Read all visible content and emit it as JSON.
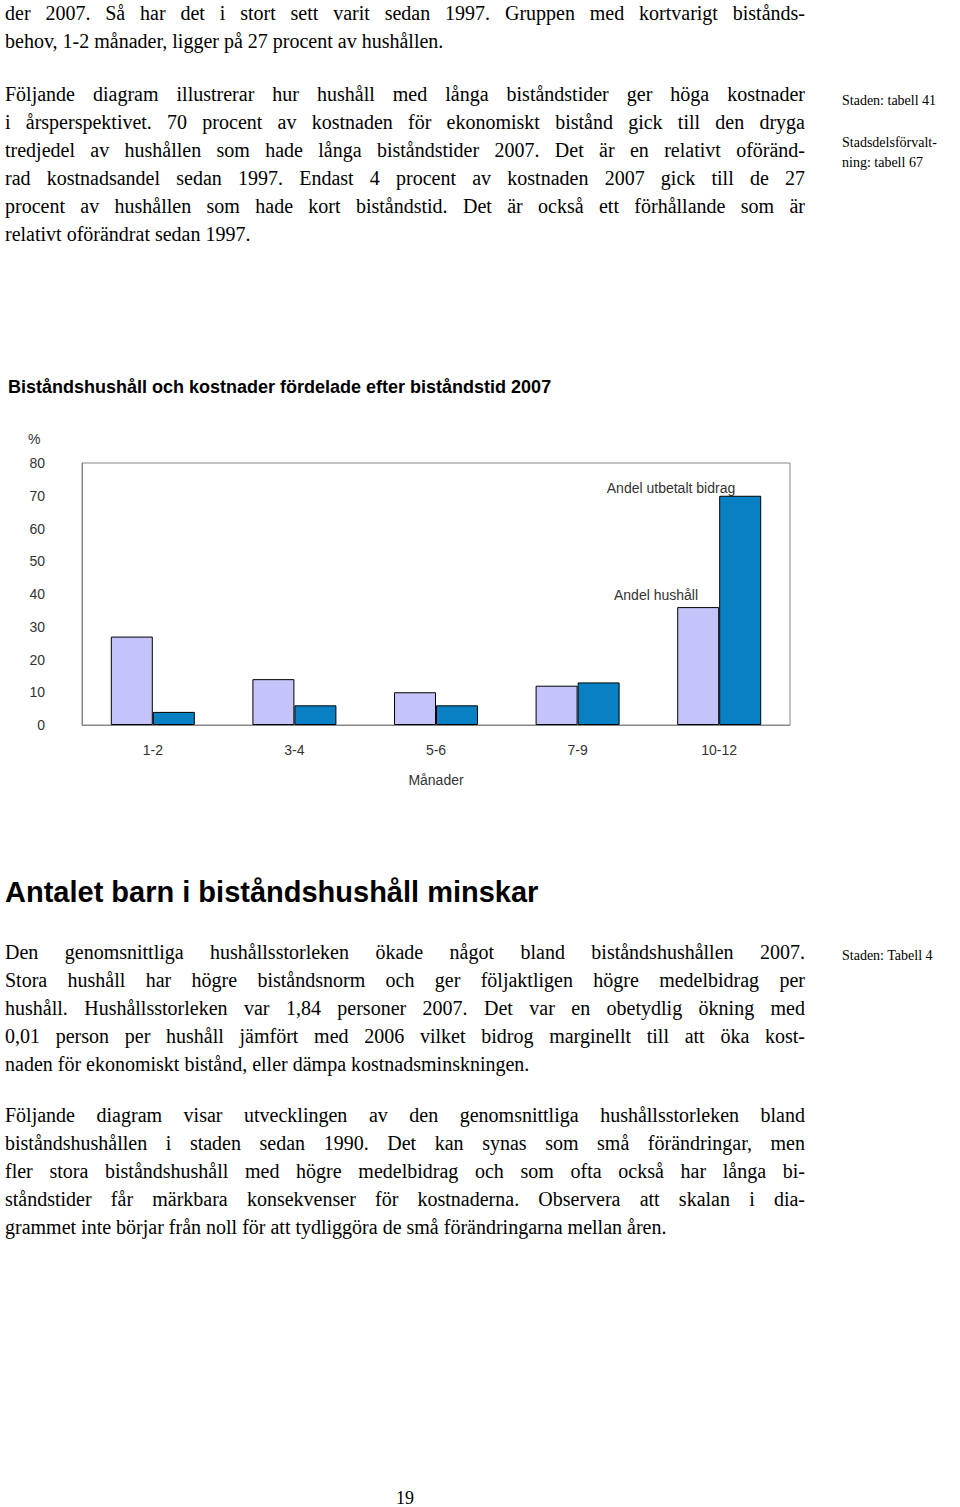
{
  "page": {
    "paragraph_1": [
      "der 2007. Så har det i stort sett varit sedan 1997. Gruppen med kortvarigt bistånds-",
      "behov, 1-2 månader, ligger på 27 procent av hushållen."
    ],
    "paragraph_2": [
      "Följande diagram illustrerar hur hushåll med långa biståndstider ger höga kostnader",
      "i årsperspektivet. 70 procent av kostnaden för ekonomiskt bistånd gick till den dryga",
      "tredjedel av hushållen som hade långa biståndstider 2007. Det är en relativt oföränd-",
      "rad kostnadsandel sedan 1997. Endast 4 procent av kostnaden 2007 gick till de 27",
      "procent av hushållen som hade kort biståndstid. Det är också ett förhållande som är",
      "relativt oförändrat sedan 1997."
    ],
    "heading": "Antalet barn i biståndshushåll minskar",
    "paragraph_3": [
      "Den genomsnittliga hushållsstorleken ökade något bland biståndshushållen 2007.",
      "Stora hushåll har högre biståndsnorm och ger följaktligen högre medelbidrag per",
      "hushåll. Hushållsstorleken var 1,84 personer 2007. Det var en obetydlig ökning med",
      "0,01 person per hushåll jämfört med 2006 vilket bidrog marginellt till att öka kost-",
      "naden för ekonomiskt bistånd, eller dämpa kostnadsminskningen."
    ],
    "paragraph_4": [
      "Följande diagram visar utvecklingen av den genomsnittliga hushållsstorleken bland",
      "biståndshushållen i staden sedan 1990. Det kan synas som små förändringar, men",
      "fler stora biståndshushåll med högre medelbidrag och som ofta också har långa bi-",
      "ståndstider får märkbara konsekvenser för kostnaderna. Observera att skalan i dia-",
      "grammet inte börjar från noll för att tydliggöra de små förändringarna mellan åren."
    ],
    "margin_notes": [
      [
        "Staden: tabell 41"
      ],
      [
        "Stadsdelsförvalt-",
        "ning: tabell 67"
      ],
      [
        "Staden: Tabell 4"
      ]
    ],
    "page_number": "19"
  },
  "chart_data": {
    "type": "bar",
    "title": "Biståndshushåll och kostnader fördelade efter biståndstid 2007",
    "xlabel": "Månader",
    "ylabel": "%",
    "categories": [
      "1-2",
      "3-4",
      "5-6",
      "7-9",
      "10-12"
    ],
    "series": [
      {
        "name": "Andel hushåll",
        "color": "#c4c4fa",
        "values": [
          27,
          14,
          10,
          12,
          36
        ]
      },
      {
        "name": "Andel utbetalt bidrag",
        "color": "#0a80c4",
        "values": [
          4,
          6,
          6,
          13,
          70
        ]
      }
    ],
    "annotations": [
      "Andel utbetalt bidrag",
      "Andel hushåll"
    ],
    "ylim": [
      0,
      80
    ],
    "yticks": [
      0,
      10,
      20,
      30,
      40,
      50,
      60,
      70,
      80
    ],
    "grid": false
  }
}
